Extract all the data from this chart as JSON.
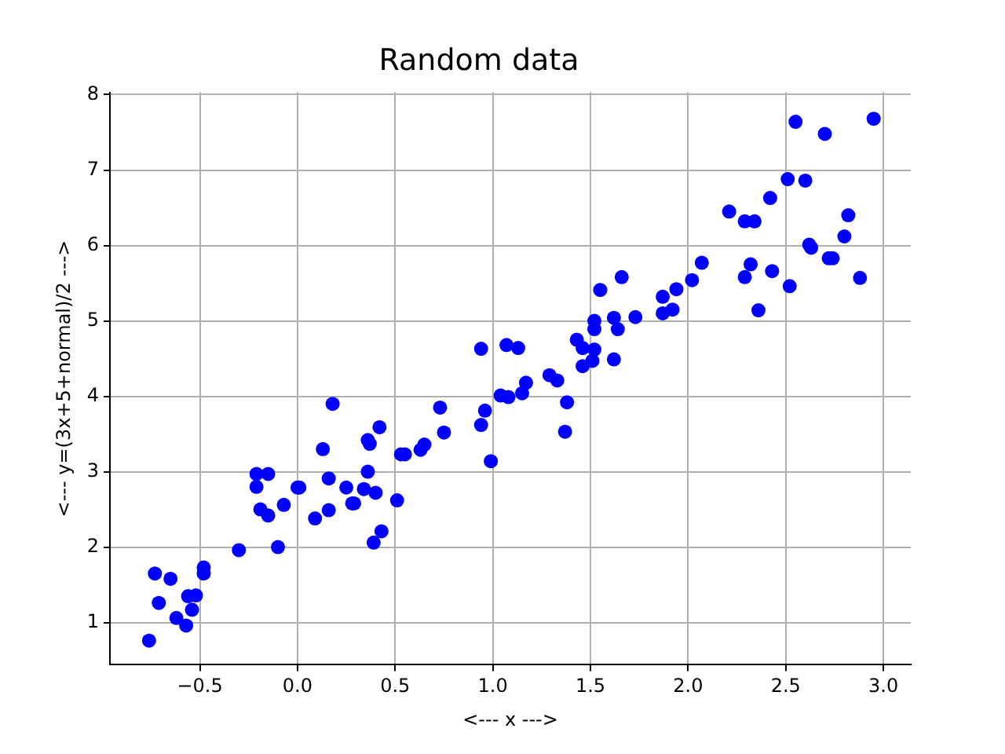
{
  "chart_data": {
    "type": "scatter",
    "title": "Random data",
    "xlabel": "<--- x --->",
    "ylabel": "<--- y=(3x+5+normal)/2 --->",
    "xlim": [
      -0.96,
      3.14
    ],
    "ylim": [
      0.44,
      8.03
    ],
    "xticks": [
      {
        "value": -0.5,
        "label": "−0.5"
      },
      {
        "value": 0,
        "label": "0.0"
      },
      {
        "value": 0.5,
        "label": "0.5"
      },
      {
        "value": 1,
        "label": "1.0"
      },
      {
        "value": 1.5,
        "label": "1.5"
      },
      {
        "value": 2,
        "label": "2.0"
      },
      {
        "value": 2.5,
        "label": "2.5"
      },
      {
        "value": 3,
        "label": "3.0"
      }
    ],
    "yticks": [
      1,
      2,
      3,
      4,
      5,
      6,
      7,
      8
    ],
    "grid": true,
    "marker": "circle",
    "series": [
      {
        "color": "#0000ff",
        "x": [
          -0.76,
          -0.73,
          -0.65,
          -0.71,
          -0.62,
          -0.57,
          -0.54,
          -0.56,
          -0.52,
          -0.48,
          -0.48,
          -0.3,
          -0.1,
          -0.21,
          -0.15,
          -0.21,
          -0.19,
          -0.15,
          -0.07,
          0.0,
          0.01,
          0.09,
          0.16,
          0.16,
          0.13,
          0.18,
          0.25,
          0.28,
          0.29,
          0.36,
          0.34,
          0.4,
          0.39,
          0.43,
          0.36,
          0.37,
          0.42,
          0.51,
          0.53,
          0.55,
          0.63,
          0.65,
          0.73,
          0.75,
          0.94,
          0.94,
          0.96,
          0.99,
          1.04,
          1.08,
          1.07,
          1.13,
          1.15,
          1.17,
          1.29,
          1.33,
          1.38,
          1.37,
          1.43,
          1.46,
          1.52,
          1.46,
          1.51,
          1.52,
          1.52,
          1.55,
          1.62,
          1.62,
          1.64,
          1.66,
          1.73,
          1.87,
          1.87,
          1.92,
          1.94,
          2.02,
          2.07,
          2.21,
          2.29,
          2.34,
          2.29,
          2.32,
          2.36,
          2.42,
          2.43,
          2.51,
          2.52,
          2.55,
          2.6,
          2.62,
          2.63,
          2.7,
          2.72,
          2.74,
          2.8,
          2.82,
          2.88,
          2.95
        ],
        "values": [
          0.76,
          1.65,
          1.58,
          1.26,
          1.06,
          0.96,
          1.17,
          1.35,
          1.36,
          1.73,
          1.65,
          1.96,
          2.0,
          2.97,
          2.97,
          2.8,
          2.5,
          2.42,
          2.56,
          2.79,
          2.79,
          2.38,
          2.49,
          2.91,
          3.3,
          3.9,
          2.79,
          2.58,
          2.58,
          3.0,
          2.77,
          2.72,
          2.06,
          2.21,
          3.42,
          3.37,
          3.59,
          2.62,
          3.23,
          3.23,
          3.29,
          3.36,
          3.85,
          3.52,
          4.63,
          3.62,
          3.81,
          3.14,
          4.01,
          3.99,
          4.68,
          4.64,
          4.04,
          4.18,
          4.28,
          4.21,
          3.92,
          3.53,
          4.75,
          4.64,
          4.62,
          4.4,
          4.47,
          5.0,
          4.89,
          5.41,
          4.49,
          5.04,
          4.89,
          5.58,
          5.05,
          5.32,
          5.1,
          5.15,
          5.42,
          5.54,
          5.77,
          6.45,
          6.32,
          6.32,
          5.58,
          5.75,
          5.14,
          6.63,
          5.66,
          6.88,
          5.46,
          7.64,
          6.86,
          6.01,
          5.97,
          7.48,
          5.83,
          5.83,
          6.12,
          6.4,
          5.57,
          7.68
        ]
      }
    ]
  }
}
